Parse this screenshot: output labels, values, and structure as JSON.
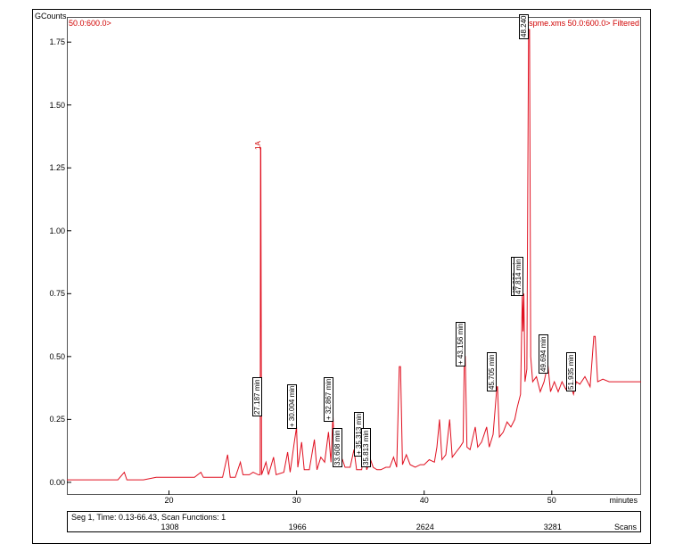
{
  "chart": {
    "type": "chromatogram-line",
    "y_axis": {
      "title": "GCounts",
      "ticks": [
        0.0,
        0.25,
        0.5,
        0.75,
        1.0,
        1.25,
        1.5,
        1.75
      ],
      "min": -0.05,
      "max": 1.85,
      "title_fontsize": 9,
      "tick_fontsize": 9
    },
    "x_axis": {
      "title": "minutes",
      "ticks": [
        20,
        30,
        40,
        50
      ],
      "min": 12,
      "max": 57,
      "tick_fontsize": 9
    },
    "colors": {
      "trace": "#e01020",
      "frame": "#000000",
      "plot_border": "#555555",
      "background": "#ffffff",
      "anno_red": "#d00000"
    },
    "line_width": 1,
    "top_annotations": {
      "left": "50.0:600.0>",
      "right": "1-spme.xms 50.0:600.0> Filtered"
    },
    "peak_labels": [
      {
        "x": 27.3,
        "y_top": 1.35,
        "text": "1A",
        "boxed": false,
        "color": "#d00000"
      },
      {
        "x": 27.3,
        "y_top": 0.3,
        "text": "27.187 min",
        "boxed": true
      },
      {
        "x": 30.0,
        "y_top": 0.25,
        "text": "+ 30.004 min",
        "boxed": true
      },
      {
        "x": 32.9,
        "y_top": 0.28,
        "text": "+ 32.867 min",
        "boxed": true
      },
      {
        "x": 33.6,
        "y_top": 0.1,
        "text": "33.608 min",
        "boxed": true
      },
      {
        "x": 35.3,
        "y_top": 0.14,
        "text": "+ 35.313 min",
        "boxed": true
      },
      {
        "x": 35.8,
        "y_top": 0.1,
        "text": "35.813 min",
        "boxed": true
      },
      {
        "x": 43.2,
        "y_top": 0.5,
        "text": "+ 43.156 min",
        "boxed": true
      },
      {
        "x": 45.7,
        "y_top": 0.4,
        "text": "45.705 min",
        "boxed": true
      },
      {
        "x": 47.6,
        "y_top": 0.78,
        "text": "47.693 min",
        "boxed": true
      },
      {
        "x": 47.8,
        "y_top": 0.78,
        "text": "47.814 min",
        "boxed": true
      },
      {
        "x": 48.2,
        "y_top": 1.8,
        "text": "48.240",
        "boxed": true
      },
      {
        "x": 49.7,
        "y_top": 0.47,
        "text": "49.694 min",
        "boxed": true
      },
      {
        "x": 51.9,
        "y_top": 0.4,
        "text": "51.935 min",
        "boxed": true
      }
    ],
    "trace": [
      [
        12.0,
        0.01
      ],
      [
        14.0,
        0.01
      ],
      [
        16.0,
        0.01
      ],
      [
        16.5,
        0.04
      ],
      [
        16.7,
        0.01
      ],
      [
        18.0,
        0.01
      ],
      [
        19.0,
        0.02
      ],
      [
        19.5,
        0.02
      ],
      [
        20.0,
        0.02
      ],
      [
        21.0,
        0.02
      ],
      [
        22.0,
        0.02
      ],
      [
        22.5,
        0.04
      ],
      [
        22.7,
        0.02
      ],
      [
        23.5,
        0.02
      ],
      [
        24.2,
        0.02
      ],
      [
        24.6,
        0.11
      ],
      [
        24.8,
        0.02
      ],
      [
        25.2,
        0.02
      ],
      [
        25.6,
        0.08
      ],
      [
        25.8,
        0.03
      ],
      [
        26.3,
        0.03
      ],
      [
        26.6,
        0.04
      ],
      [
        27.0,
        0.03
      ],
      [
        27.15,
        0.03
      ],
      [
        27.18,
        1.33
      ],
      [
        27.2,
        1.33
      ],
      [
        27.26,
        0.03
      ],
      [
        27.6,
        0.08
      ],
      [
        27.8,
        0.03
      ],
      [
        28.2,
        0.1
      ],
      [
        28.4,
        0.03
      ],
      [
        29.0,
        0.04
      ],
      [
        29.3,
        0.12
      ],
      [
        29.5,
        0.04
      ],
      [
        29.8,
        0.15
      ],
      [
        30.0,
        0.22
      ],
      [
        30.1,
        0.06
      ],
      [
        30.4,
        0.16
      ],
      [
        30.6,
        0.05
      ],
      [
        31.0,
        0.05
      ],
      [
        31.4,
        0.17
      ],
      [
        31.6,
        0.05
      ],
      [
        31.9,
        0.1
      ],
      [
        32.2,
        0.08
      ],
      [
        32.5,
        0.2
      ],
      [
        32.7,
        0.08
      ],
      [
        32.85,
        0.27
      ],
      [
        33.0,
        0.07
      ],
      [
        33.3,
        0.07
      ],
      [
        33.6,
        0.09
      ],
      [
        33.8,
        0.06
      ],
      [
        34.2,
        0.06
      ],
      [
        34.5,
        0.13
      ],
      [
        34.7,
        0.05
      ],
      [
        35.1,
        0.05
      ],
      [
        35.3,
        0.13
      ],
      [
        35.5,
        0.05
      ],
      [
        35.8,
        0.09
      ],
      [
        36.0,
        0.06
      ],
      [
        36.3,
        0.05
      ],
      [
        36.6,
        0.05
      ],
      [
        37.0,
        0.06
      ],
      [
        37.3,
        0.06
      ],
      [
        37.6,
        0.1
      ],
      [
        37.85,
        0.06
      ],
      [
        38.05,
        0.46
      ],
      [
        38.15,
        0.46
      ],
      [
        38.3,
        0.07
      ],
      [
        38.6,
        0.11
      ],
      [
        38.9,
        0.07
      ],
      [
        39.3,
        0.06
      ],
      [
        39.7,
        0.07
      ],
      [
        40.0,
        0.07
      ],
      [
        40.4,
        0.09
      ],
      [
        40.8,
        0.08
      ],
      [
        41.0,
        0.14
      ],
      [
        41.2,
        0.25
      ],
      [
        41.4,
        0.09
      ],
      [
        41.7,
        0.11
      ],
      [
        42.0,
        0.25
      ],
      [
        42.2,
        0.1
      ],
      [
        42.5,
        0.12
      ],
      [
        42.8,
        0.14
      ],
      [
        43.05,
        0.16
      ],
      [
        43.15,
        0.5
      ],
      [
        43.22,
        0.5
      ],
      [
        43.35,
        0.14
      ],
      [
        43.6,
        0.13
      ],
      [
        44.0,
        0.22
      ],
      [
        44.2,
        0.14
      ],
      [
        44.5,
        0.16
      ],
      [
        44.9,
        0.22
      ],
      [
        45.1,
        0.14
      ],
      [
        45.4,
        0.19
      ],
      [
        45.7,
        0.38
      ],
      [
        45.75,
        0.38
      ],
      [
        45.9,
        0.18
      ],
      [
        46.2,
        0.2
      ],
      [
        46.5,
        0.24
      ],
      [
        46.8,
        0.22
      ],
      [
        47.1,
        0.25
      ],
      [
        47.3,
        0.3
      ],
      [
        47.55,
        0.35
      ],
      [
        47.69,
        0.75
      ],
      [
        47.75,
        0.6
      ],
      [
        47.81,
        0.75
      ],
      [
        47.9,
        0.4
      ],
      [
        48.05,
        0.45
      ],
      [
        48.18,
        1.8
      ],
      [
        48.26,
        1.8
      ],
      [
        48.35,
        0.5
      ],
      [
        48.5,
        0.4
      ],
      [
        48.8,
        0.42
      ],
      [
        49.1,
        0.36
      ],
      [
        49.4,
        0.4
      ],
      [
        49.69,
        0.47
      ],
      [
        49.9,
        0.36
      ],
      [
        50.2,
        0.4
      ],
      [
        50.5,
        0.36
      ],
      [
        50.8,
        0.4
      ],
      [
        51.1,
        0.37
      ],
      [
        51.4,
        0.4
      ],
      [
        51.7,
        0.35
      ],
      [
        51.93,
        0.4
      ],
      [
        52.2,
        0.39
      ],
      [
        52.6,
        0.42
      ],
      [
        53.0,
        0.38
      ],
      [
        53.3,
        0.58
      ],
      [
        53.4,
        0.58
      ],
      [
        53.6,
        0.4
      ],
      [
        54.0,
        0.41
      ],
      [
        54.5,
        0.4
      ],
      [
        55.0,
        0.4
      ],
      [
        55.5,
        0.4
      ],
      [
        56.0,
        0.4
      ],
      [
        56.5,
        0.4
      ],
      [
        57.0,
        0.4
      ]
    ]
  },
  "scans_bar": {
    "caption": "Seg 1, Time: 0.13-66.43, Scan Functions: 1",
    "unit": "Scans",
    "ticks": [
      {
        "pos_min": 20,
        "label": "1308"
      },
      {
        "pos_min": 30,
        "label": "1966"
      },
      {
        "pos_min": 40,
        "label": "2624"
      },
      {
        "pos_min": 50,
        "label": "3281"
      }
    ]
  }
}
